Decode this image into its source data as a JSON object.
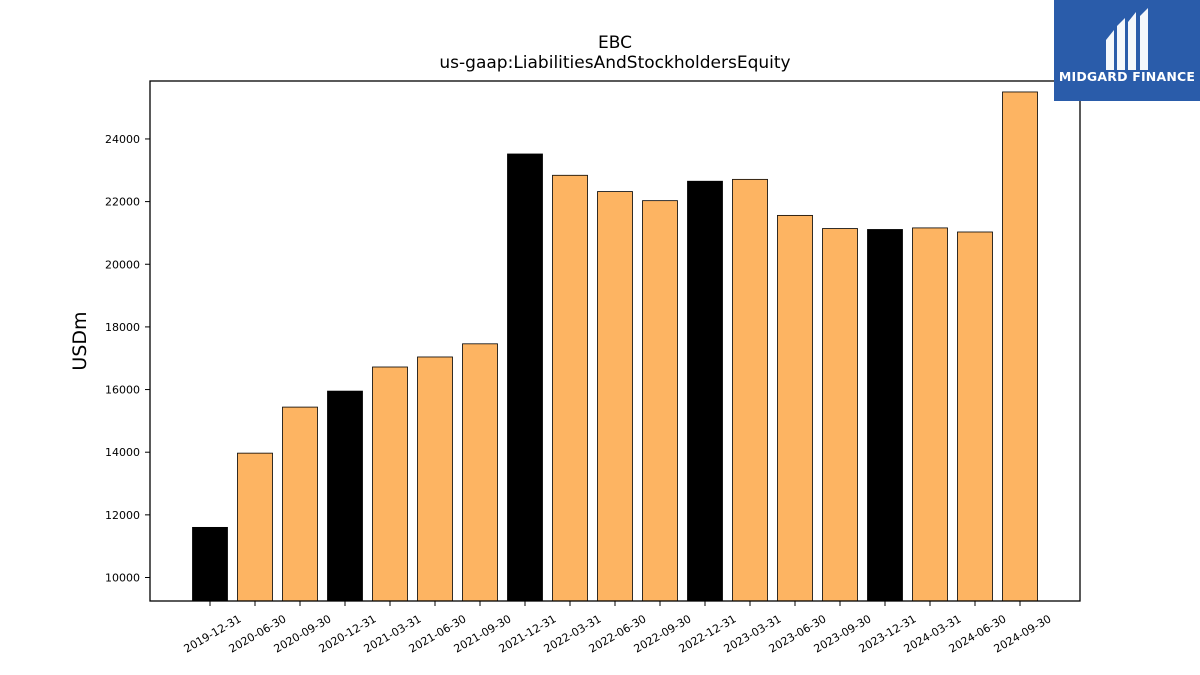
{
  "chart_data": {
    "type": "bar",
    "title": "EBC",
    "subtitle": "us-gaap:LiabilitiesAndStockholdersEquity",
    "xlabel": "",
    "ylabel": "USDm",
    "ylim": [
      9250,
      25850
    ],
    "yticks": [
      10000,
      12000,
      14000,
      16000,
      18000,
      20000,
      22000,
      24000
    ],
    "grid": false,
    "categories": [
      "2019-12-31",
      "2020-06-30",
      "2020-09-30",
      "2020-12-31",
      "2021-03-31",
      "2021-06-30",
      "2021-09-30",
      "2021-12-31",
      "2022-03-31",
      "2022-06-30",
      "2022-09-30",
      "2022-12-31",
      "2023-03-31",
      "2023-06-30",
      "2023-09-30",
      "2023-12-31",
      "2024-03-31",
      "2024-06-30",
      "2024-09-30"
    ],
    "values": [
      11600,
      13970,
      15440,
      15950,
      16720,
      17040,
      17460,
      23520,
      22840,
      22320,
      22030,
      22650,
      22710,
      21560,
      21140,
      21110,
      21160,
      21030,
      25500
    ],
    "colors": [
      "#000000",
      "#fdb462",
      "#fdb462",
      "#000000",
      "#fdb462",
      "#fdb462",
      "#fdb462",
      "#000000",
      "#fdb462",
      "#fdb462",
      "#fdb462",
      "#000000",
      "#fdb462",
      "#fdb462",
      "#fdb462",
      "#000000",
      "#fdb462",
      "#fdb462",
      "#fdb462"
    ]
  },
  "logo": {
    "text": "MIDGARD FINANCE",
    "background": "#2a5caa",
    "icon": "midgard-logo-icon"
  }
}
